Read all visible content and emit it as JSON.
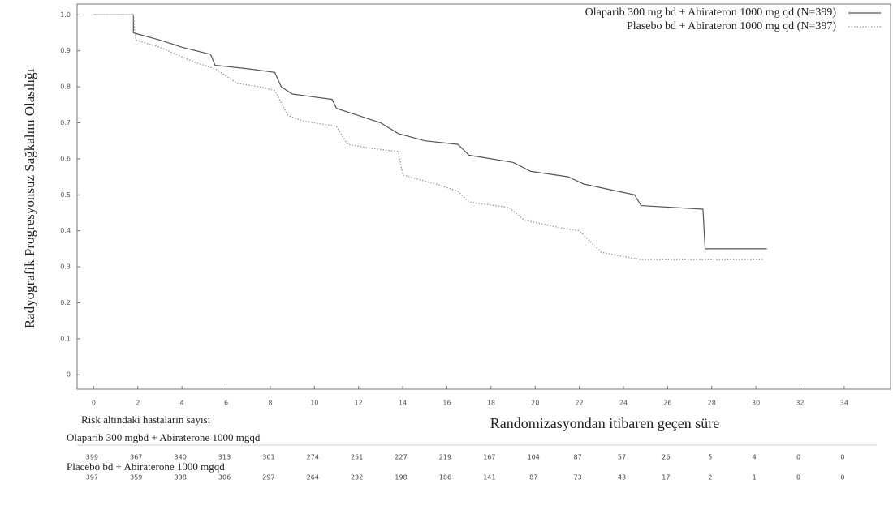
{
  "chart_data": {
    "type": "line",
    "ylabel": "Radyografik Progresyonsuz Sağkalım Olasılığı",
    "xlabel": "Randomizasyondan itibaren geçen süre",
    "xlim": [
      -0.75,
      36.1
    ],
    "ylim": [
      -0.04,
      1.03
    ],
    "xticks": [
      0,
      2,
      4,
      6,
      8,
      10,
      12,
      14,
      16,
      18,
      20,
      22,
      24,
      26,
      28,
      30,
      32,
      34
    ],
    "yticks": [
      0,
      0.1,
      0.2,
      0.3,
      0.4,
      0.5,
      0.6,
      0.7,
      0.8,
      0.9,
      {
        "value": 1,
        "label": "1.0"
      }
    ],
    "legend": "upper right",
    "series": [
      {
        "name": "Olaparib 300 mg bd + Abirateron 1000 mg qd (N=399)",
        "color": "#555555",
        "dash": "solid",
        "x": [
          0,
          1.8,
          1.8,
          3.0,
          3.5,
          4.0,
          5.3,
          5.5,
          7.0,
          8.2,
          8.5,
          9.0,
          10.8,
          11.0,
          12.0,
          13.0,
          13.8,
          15.0,
          16.5,
          17.0,
          19.0,
          19.8,
          21.5,
          22.2,
          24.5,
          24.8,
          27.6,
          27.7,
          30.5
        ],
        "values": [
          1.0,
          1.0,
          0.95,
          0.93,
          0.92,
          0.91,
          0.89,
          0.86,
          0.85,
          0.84,
          0.8,
          0.78,
          0.765,
          0.74,
          0.72,
          0.7,
          0.67,
          0.65,
          0.64,
          0.61,
          0.59,
          0.565,
          0.55,
          0.53,
          0.5,
          0.47,
          0.46,
          0.35,
          0.35
        ]
      },
      {
        "name": "Plasebo bd + Abirateron 1000 mg qd (N=397)",
        "color": "#999999",
        "dash": "dotted",
        "x": [
          0,
          1.8,
          1.9,
          3.0,
          4.5,
          5.5,
          6.5,
          7.5,
          8.2,
          8.8,
          9.5,
          11.0,
          11.5,
          12.5,
          13.8,
          14.0,
          15.5,
          16.5,
          17.0,
          18.8,
          19.5,
          21.0,
          22.0,
          22.5,
          23.0,
          24.8,
          28.0,
          30.3
        ],
        "values": [
          1.0,
          1.0,
          0.93,
          0.91,
          0.87,
          0.85,
          0.81,
          0.8,
          0.79,
          0.72,
          0.705,
          0.69,
          0.64,
          0.63,
          0.62,
          0.555,
          0.53,
          0.51,
          0.48,
          0.465,
          0.43,
          0.41,
          0.4,
          0.37,
          0.34,
          0.32,
          0.32,
          0.32
        ]
      }
    ],
    "risk_table": {
      "title": "Risk altındaki hastaların sayısı",
      "groups": [
        {
          "name": "Olaparib 300 mgbd + Abiraterone 1000 mgqd",
          "counts": [
            399,
            367,
            340,
            313,
            301,
            274,
            251,
            227,
            219,
            167,
            104,
            87,
            57,
            26,
            5,
            4,
            0,
            0
          ]
        },
        {
          "name": "Placebo bd + Abiraterone 1000 mgqd",
          "counts": [
            397,
            359,
            338,
            306,
            297,
            264,
            232,
            198,
            186,
            141,
            87,
            73,
            43,
            17,
            2,
            1,
            0,
            0
          ]
        }
      ]
    }
  }
}
